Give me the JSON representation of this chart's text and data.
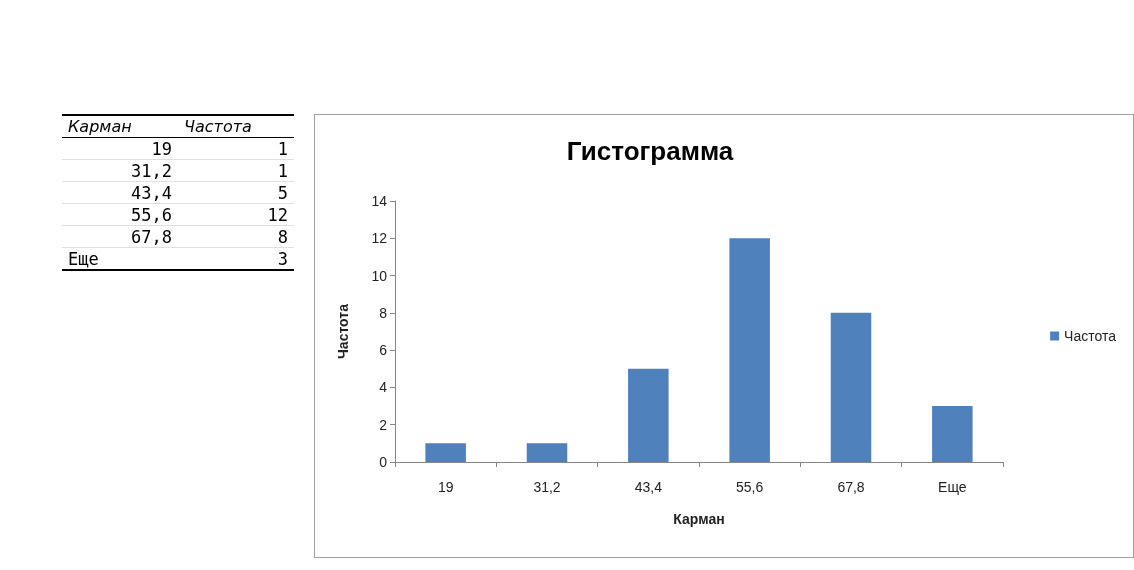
{
  "chart_data": {
    "type": "histogram",
    "title": "Гистограмма",
    "xlabel": "Карман",
    "ylabel": "Частота",
    "categories": [
      "19",
      "31,2",
      "43,4",
      "55,6",
      "67,8",
      "Еще"
    ],
    "series": [
      {
        "name": "Частота",
        "color": "#4f81bd",
        "values": [
          1,
          1,
          5,
          12,
          8,
          3
        ]
      }
    ],
    "ylim": [
      0,
      14
    ],
    "yticks": [
      0,
      2,
      4,
      6,
      8,
      10,
      12,
      14
    ],
    "grid": false,
    "legend": "right",
    "annotations": [
      "Карман",
      "Частота",
      "19",
      "1",
      "31,2",
      "1",
      "43,4",
      "5",
      "55,6",
      "12",
      "67,8",
      "8",
      "Еще",
      "3"
    ]
  }
}
